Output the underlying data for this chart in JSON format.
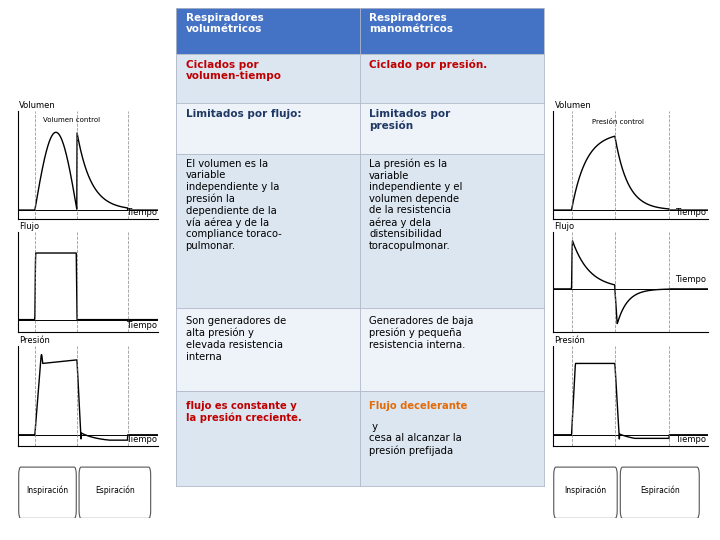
{
  "bg_color": "#ffffff",
  "header_bg": "#4472c4",
  "header_text_color": "#ffffff",
  "row_alt_bg": "#dce6f1",
  "row_white_bg": "#eef3f9",
  "red_color": "#c00000",
  "blue_color": "#1f3864",
  "orange_color": "#e26b0a",
  "header_left": "Respiradores\nvolumétricos",
  "header_right": "Respiradores\nmanométricos",
  "row1_left": "Ciclados por\nvolumen-tiempo",
  "row1_right": "Ciclado por presión.",
  "row2_left": "Limitados por flujo:",
  "row2_right": "Limitados por\npresión",
  "row3_left": "El volumen es la\nvariable\nindependiente y la\npresión la\ndependiente de la\nvía aérea y de la\ncompliance toraco-\npulmonar.",
  "row3_right": "La presión es la\nvariable\nindependiente y el\nvolumen depende\nde la resistencia\naérea y dela\ndistensibilidad\ntoracopulmonar.",
  "row4_left": "Son generadores de\nalta presión y\nelevada resistencia\ninterna",
  "row4_right": "Generadores de baja\npresión y pequeña\nresistencia interna.",
  "row5_left": "flujo es constante y\nla presión creciente.",
  "row5_right_orange": "Flujo decelerante",
  "row5_right_black": " y\ncesa al alcanzar la\npresión prefijada"
}
